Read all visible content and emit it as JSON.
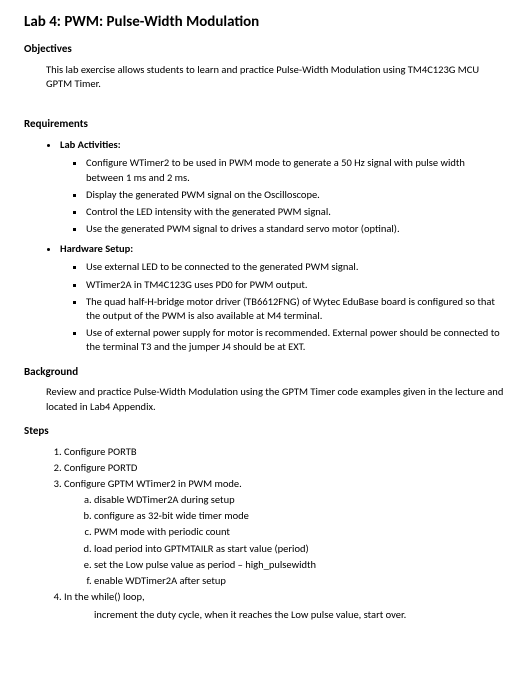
{
  "title": "Lab 4: PWM: Pulse-Width Modulation",
  "objectives": {
    "heading": "Objectives",
    "text": "This lab exercise allows students to learn and practice Pulse-Width Modulation using TM4C123G MCU GPTM Timer."
  },
  "requirements": {
    "heading": "Requirements",
    "lab_activities": {
      "label": "Lab Activities:",
      "items": [
        "Configure WTimer2 to be used in PWM mode to generate a 50 Hz signal with pulse width between 1 ms and 2 ms.",
        "Display the generated PWM signal on the Oscilloscope.",
        "Control the LED intensity with the generated PWM signal.",
        "Use the generated PWM signal to drives a standard servo motor (optinal)."
      ]
    },
    "hardware_setup": {
      "label": "Hardware Setup:",
      "items": [
        "Use external LED to be connected to the generated PWM signal.",
        "WTimer2A in TM4C123G uses PD0 for PWM output.",
        "The quad half-H-bridge motor driver (TB6612FNG) of Wytec EduBase board is configured so that the output of the PWM is also available at M4 terminal.",
        "Use of external power supply for motor is recommended.  External power should be connected to the terminal T3 and the jumper J4 should be at EXT."
      ]
    }
  },
  "background": {
    "heading": "Background",
    "text": "Review and practice Pulse-Width Modulation using the GPTM Timer code examples given in the lecture and located in Lab4 Appendix."
  },
  "steps": {
    "heading": "Steps",
    "items": [
      "Configure PORTB",
      "Configure PORTD",
      "Configure GPTM WTimer2 in PWM mode.",
      "In the while() loop,"
    ],
    "sub3": [
      "disable WDTimer2A during setup",
      "configure as 32-bit wide timer mode",
      "PWM mode with periodic count",
      "load period into GPTMTAILR as start value (period)",
      "set the Low pulse value as period – high_pulsewidth",
      "enable WDTimer2A after setup"
    ],
    "sub4_text": "increment the duty cycle, when it reaches the Low pulse value, start over."
  }
}
